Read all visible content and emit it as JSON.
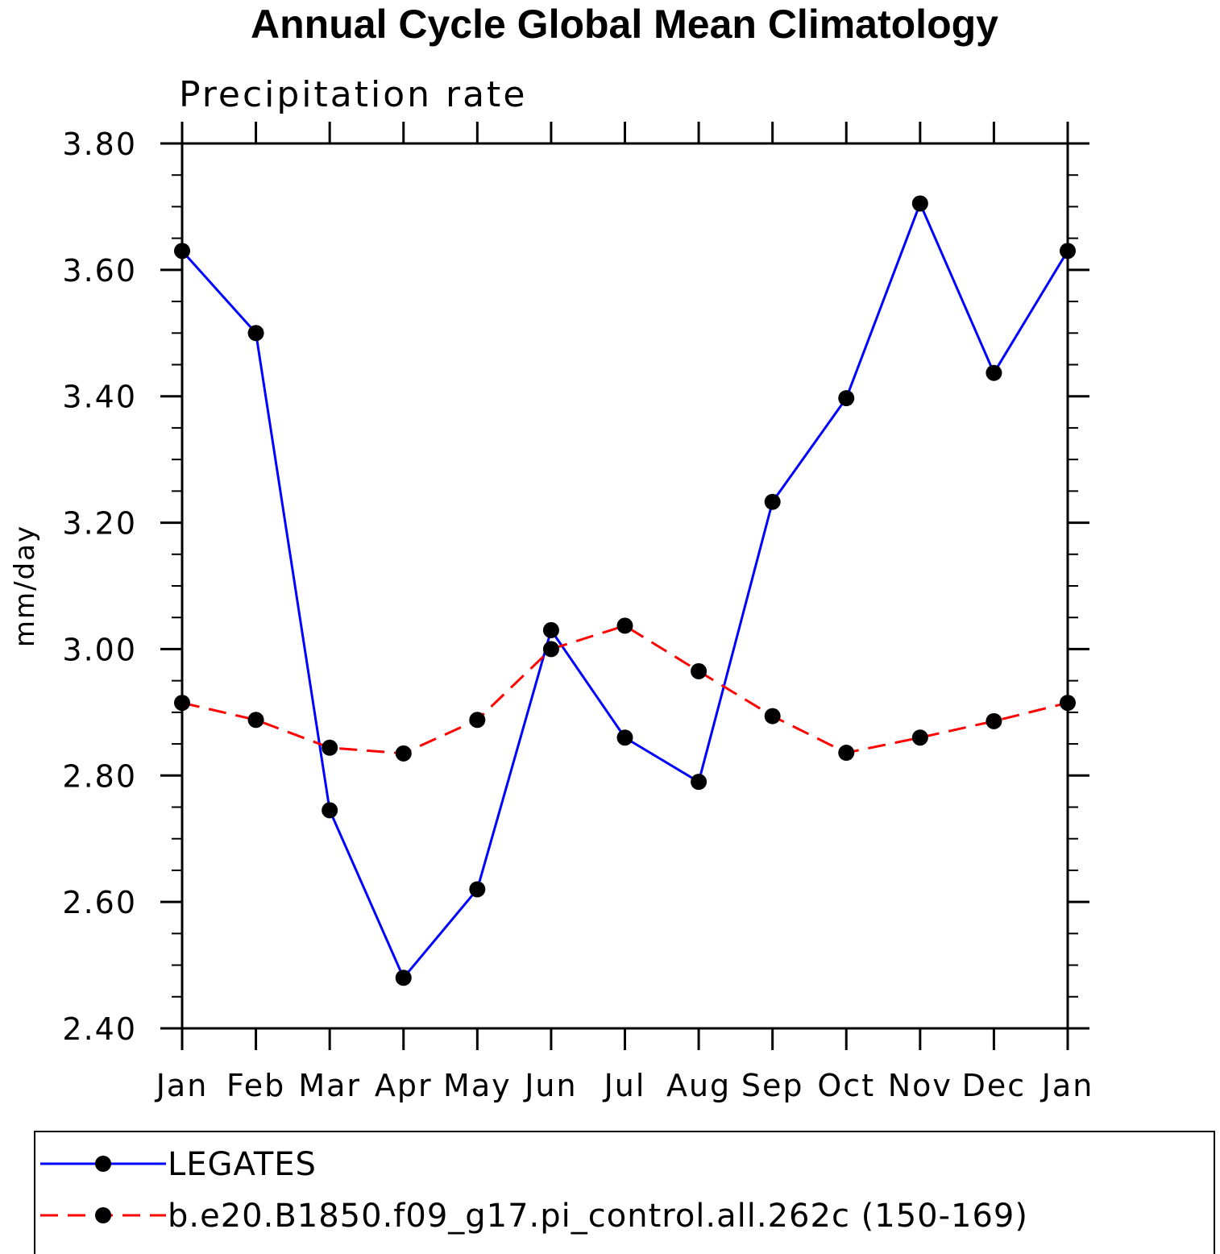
{
  "chart_data": {
    "type": "line",
    "title": "Annual Cycle Global Mean Climatology",
    "subtitle": "Precipitation rate",
    "ylabel": "mm/day",
    "xlabel": "",
    "categories": [
      "Jan",
      "Feb",
      "Mar",
      "Apr",
      "May",
      "Jun",
      "Jul",
      "Aug",
      "Sep",
      "Oct",
      "Nov",
      "Dec",
      "Jan"
    ],
    "ylim": [
      2.4,
      3.8
    ],
    "yticks": [
      "2.40",
      "2.60",
      "2.80",
      "3.00",
      "3.20",
      "3.40",
      "3.60",
      "3.80"
    ],
    "grid": false,
    "legend_position": "bottom",
    "series": [
      {
        "name": "LEGATES",
        "color": "#0000ff",
        "dash": "solid",
        "marker": "filled-circle",
        "values": [
          3.63,
          3.5,
          2.745,
          2.48,
          2.62,
          3.03,
          2.86,
          2.79,
          3.233,
          3.397,
          3.705,
          3.437,
          3.63
        ]
      },
      {
        "name": "b.e20.B1850.f09_g17.pi_control.all.262c (150-169)",
        "color": "#ff0000",
        "dash": "dashed",
        "marker": "filled-circle",
        "values": [
          2.915,
          2.888,
          2.844,
          2.835,
          2.888,
          3.0,
          3.037,
          2.965,
          2.894,
          2.836,
          2.86,
          2.886,
          2.915
        ]
      }
    ]
  }
}
